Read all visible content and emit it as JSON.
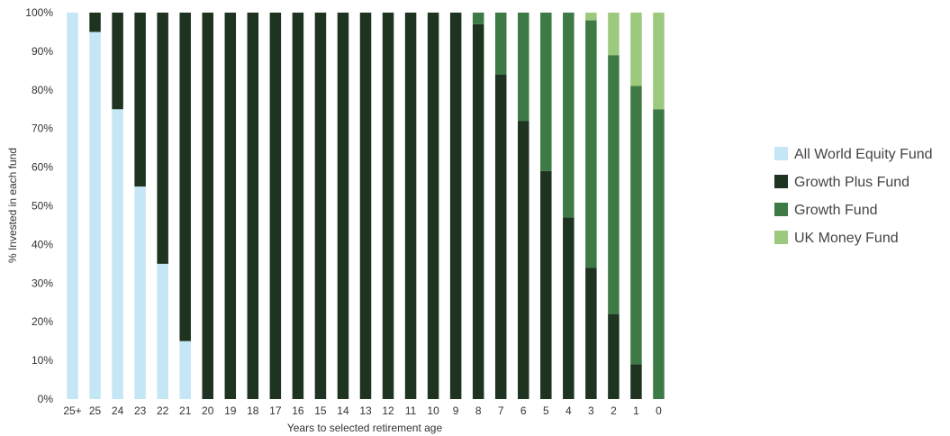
{
  "chart_data": {
    "type": "bar",
    "stacked": true,
    "xlabel": "Years to selected retirement age",
    "ylabel": "% Invested in each fund",
    "ylim": [
      0,
      100
    ],
    "yticks": [
      "0%",
      "10%",
      "20%",
      "30%",
      "40%",
      "50%",
      "60%",
      "70%",
      "80%",
      "90%",
      "100%"
    ],
    "grid": false,
    "legend_position": "right",
    "categories": [
      "25+",
      "25",
      "24",
      "23",
      "22",
      "21",
      "20",
      "19",
      "18",
      "17",
      "16",
      "15",
      "14",
      "13",
      "12",
      "11",
      "10",
      "9",
      "8",
      "7",
      "6",
      "5",
      "4",
      "3",
      "2",
      "1",
      "0"
    ],
    "series": [
      {
        "name": "All World Equity Fund",
        "color": "#c5e6f4",
        "values": [
          100,
          95,
          75,
          55,
          35,
          15,
          0,
          0,
          0,
          0,
          0,
          0,
          0,
          0,
          0,
          0,
          0,
          0,
          0,
          0,
          0,
          0,
          0,
          0,
          0,
          0,
          0
        ]
      },
      {
        "name": "Growth Plus Fund",
        "color": "#1e3320",
        "values": [
          0,
          5,
          25,
          45,
          65,
          85,
          100,
          100,
          100,
          100,
          100,
          100,
          100,
          100,
          100,
          100,
          100,
          100,
          97,
          84,
          72,
          59,
          47,
          34,
          22,
          9,
          0
        ]
      },
      {
        "name": "Growth Fund",
        "color": "#3d7a45",
        "values": [
          0,
          0,
          0,
          0,
          0,
          0,
          0,
          0,
          0,
          0,
          0,
          0,
          0,
          0,
          0,
          0,
          0,
          0,
          3,
          16,
          28,
          41,
          53,
          64,
          67,
          72,
          75
        ]
      },
      {
        "name": "UK Money Fund",
        "color": "#9cc97e",
        "values": [
          0,
          0,
          0,
          0,
          0,
          0,
          0,
          0,
          0,
          0,
          0,
          0,
          0,
          0,
          0,
          0,
          0,
          0,
          0,
          0,
          0,
          0,
          0,
          2,
          11,
          19,
          25
        ]
      }
    ]
  }
}
